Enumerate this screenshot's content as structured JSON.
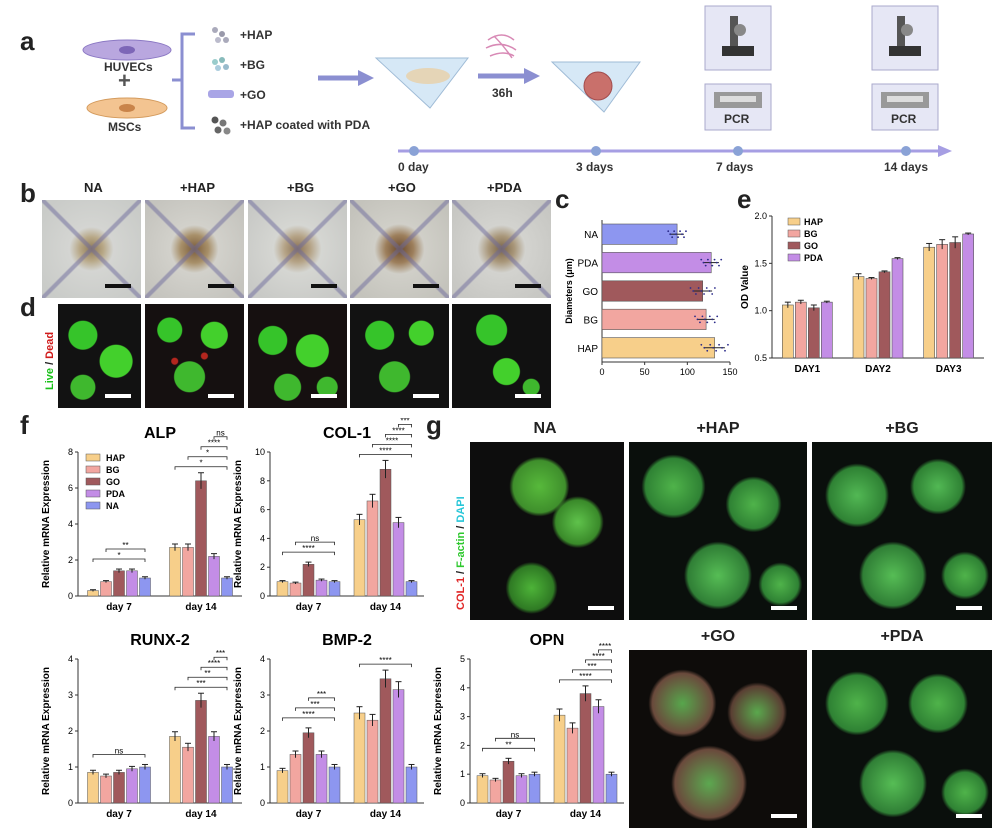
{
  "panels": {
    "a": "a",
    "b": "b",
    "c": "c",
    "d": "d",
    "e": "e",
    "f": "f",
    "g": "g"
  },
  "a": {
    "cells": [
      "HUVECs",
      "MSCs"
    ],
    "plus": "+",
    "materials": [
      "+HAP",
      "+BG",
      "+GO",
      "+HAP coated with PDA"
    ],
    "incubation": "36h",
    "timeline": [
      "0 day",
      "3 days",
      "7 days",
      "14 days"
    ],
    "pcr": "PCR"
  },
  "b": {
    "groups": [
      "NA",
      "+HAP",
      "+BG",
      "+GO",
      "+PDA"
    ]
  },
  "d": {
    "stain_live": "Live",
    "stain_sep": " / ",
    "stain_dead": "Dead"
  },
  "colors": {
    "HAP": "#f7cf8a",
    "BG": "#f2a6a0",
    "GO": "#a0595c",
    "PDA": "#c38de6",
    "NA": "#8d96f0"
  },
  "chart_data": [
    {
      "id": "c",
      "type": "bar",
      "orientation": "horizontal",
      "categories": [
        "NA",
        "PDA",
        "GO",
        "BG",
        "HAP"
      ],
      "values": [
        88,
        128,
        118,
        122,
        132
      ],
      "errors": [
        8,
        9,
        11,
        10,
        12
      ],
      "ylabel": "Diameters (μm)",
      "xlim": [
        0,
        150
      ],
      "xticks": [
        "0",
        "50",
        "100",
        "150"
      ]
    },
    {
      "id": "e",
      "type": "bar",
      "categories": [
        "DAY1",
        "DAY2",
        "DAY3"
      ],
      "series": [
        {
          "name": "HAP",
          "values": [
            1.06,
            1.36,
            1.67
          ]
        },
        {
          "name": "BG",
          "values": [
            1.09,
            1.34,
            1.7
          ]
        },
        {
          "name": "GO",
          "values": [
            1.03,
            1.41,
            1.72
          ]
        },
        {
          "name": "PDA",
          "values": [
            1.09,
            1.55,
            1.81
          ]
        }
      ],
      "errors": [
        [
          0.03,
          0.03,
          0.04
        ],
        [
          0.02,
          0.01,
          0.05
        ],
        [
          0.03,
          0.01,
          0.06
        ],
        [
          0.01,
          0.01,
          0.01
        ]
      ],
      "ylabel": "OD Value",
      "ylim": [
        0.5,
        2.0
      ],
      "yticks": [
        "0.5",
        "1.0",
        "1.5",
        "2.0"
      ]
    },
    {
      "id": "ALP",
      "type": "bar",
      "title": "ALP",
      "categories": [
        "day 7",
        "day 14"
      ],
      "series": [
        {
          "name": "HAP",
          "values": [
            0.3,
            2.7
          ]
        },
        {
          "name": "BG",
          "values": [
            0.8,
            2.7
          ]
        },
        {
          "name": "GO",
          "values": [
            1.4,
            6.4
          ]
        },
        {
          "name": "PDA",
          "values": [
            1.4,
            2.2
          ]
        },
        {
          "name": "NA",
          "values": [
            1.0,
            1.0
          ]
        }
      ],
      "ylabel": "Relative mRNA Expression",
      "ylim": [
        0,
        8
      ],
      "yticks": [
        "0",
        "2",
        "4",
        "6",
        "8"
      ],
      "sig": [
        "*",
        "**",
        "*",
        "*",
        "****",
        "ns"
      ]
    },
    {
      "id": "COL1",
      "type": "bar",
      "title": "COL-1",
      "categories": [
        "day 7",
        "day 14"
      ],
      "series": [
        {
          "name": "HAP",
          "values": [
            1.0,
            5.3
          ]
        },
        {
          "name": "BG",
          "values": [
            0.9,
            6.6
          ]
        },
        {
          "name": "GO",
          "values": [
            2.2,
            8.8
          ]
        },
        {
          "name": "PDA",
          "values": [
            1.1,
            5.1
          ]
        },
        {
          "name": "NA",
          "values": [
            1.0,
            1.0
          ]
        }
      ],
      "ylabel": "Relative mRNA Expression",
      "ylim": [
        0,
        10
      ],
      "yticks": [
        "0",
        "2",
        "4",
        "6",
        "8",
        "10"
      ],
      "sig": [
        "****",
        "ns",
        "****",
        "****",
        "****",
        "***"
      ]
    },
    {
      "id": "RUNX2",
      "type": "bar",
      "title": "RUNX-2",
      "categories": [
        "day 7",
        "day 14"
      ],
      "series": [
        {
          "name": "HAP",
          "values": [
            0.85,
            1.85
          ]
        },
        {
          "name": "BG",
          "values": [
            0.75,
            1.55
          ]
        },
        {
          "name": "GO",
          "values": [
            0.85,
            2.85
          ]
        },
        {
          "name": "PDA",
          "values": [
            0.95,
            1.85
          ]
        },
        {
          "name": "NA",
          "values": [
            1.0,
            1.0
          ]
        }
      ],
      "ylabel": "Relative mRNA Expression",
      "ylim": [
        0,
        4
      ],
      "yticks": [
        "0",
        "1",
        "2",
        "3",
        "4"
      ],
      "sig": [
        "ns",
        "***",
        "**",
        "****",
        "***"
      ]
    },
    {
      "id": "BMP2",
      "type": "bar",
      "title": "BMP-2",
      "categories": [
        "day 7",
        "day 14"
      ],
      "series": [
        {
          "name": "HAP",
          "values": [
            0.9,
            2.5
          ]
        },
        {
          "name": "BG",
          "values": [
            1.35,
            2.3
          ]
        },
        {
          "name": "GO",
          "values": [
            1.95,
            3.45
          ]
        },
        {
          "name": "PDA",
          "values": [
            1.35,
            3.15
          ]
        },
        {
          "name": "NA",
          "values": [
            1.0,
            1.0
          ]
        }
      ],
      "ylabel": "Relative mRNA Expression",
      "ylim": [
        0,
        4
      ],
      "yticks": [
        "0",
        "1",
        "2",
        "3",
        "4"
      ],
      "sig": [
        "****",
        "***",
        "***",
        "****"
      ]
    },
    {
      "id": "OPN",
      "type": "bar",
      "title": "OPN",
      "categories": [
        "day 7",
        "day 14"
      ],
      "series": [
        {
          "name": "HAP",
          "values": [
            0.95,
            3.05
          ]
        },
        {
          "name": "BG",
          "values": [
            0.8,
            2.6
          ]
        },
        {
          "name": "GO",
          "values": [
            1.45,
            3.8
          ]
        },
        {
          "name": "PDA",
          "values": [
            0.95,
            3.35
          ]
        },
        {
          "name": "NA",
          "values": [
            1.0,
            1.0
          ]
        }
      ],
      "ylabel": "Relative mRNA Expression",
      "ylim": [
        0,
        5
      ],
      "yticks": [
        "0",
        "1",
        "2",
        "3",
        "4",
        "5"
      ],
      "sig": [
        "**",
        "ns",
        "****",
        "***",
        "****",
        "****"
      ]
    }
  ],
  "g": {
    "stain_col": "COL-1",
    "stain_sep": " / ",
    "stain_f": "F-actin",
    "stain_sep2": " / ",
    "stain_dapi": "DAPI",
    "groups": [
      "NA",
      "+HAP",
      "+BG",
      "+GO",
      "+PDA"
    ]
  }
}
